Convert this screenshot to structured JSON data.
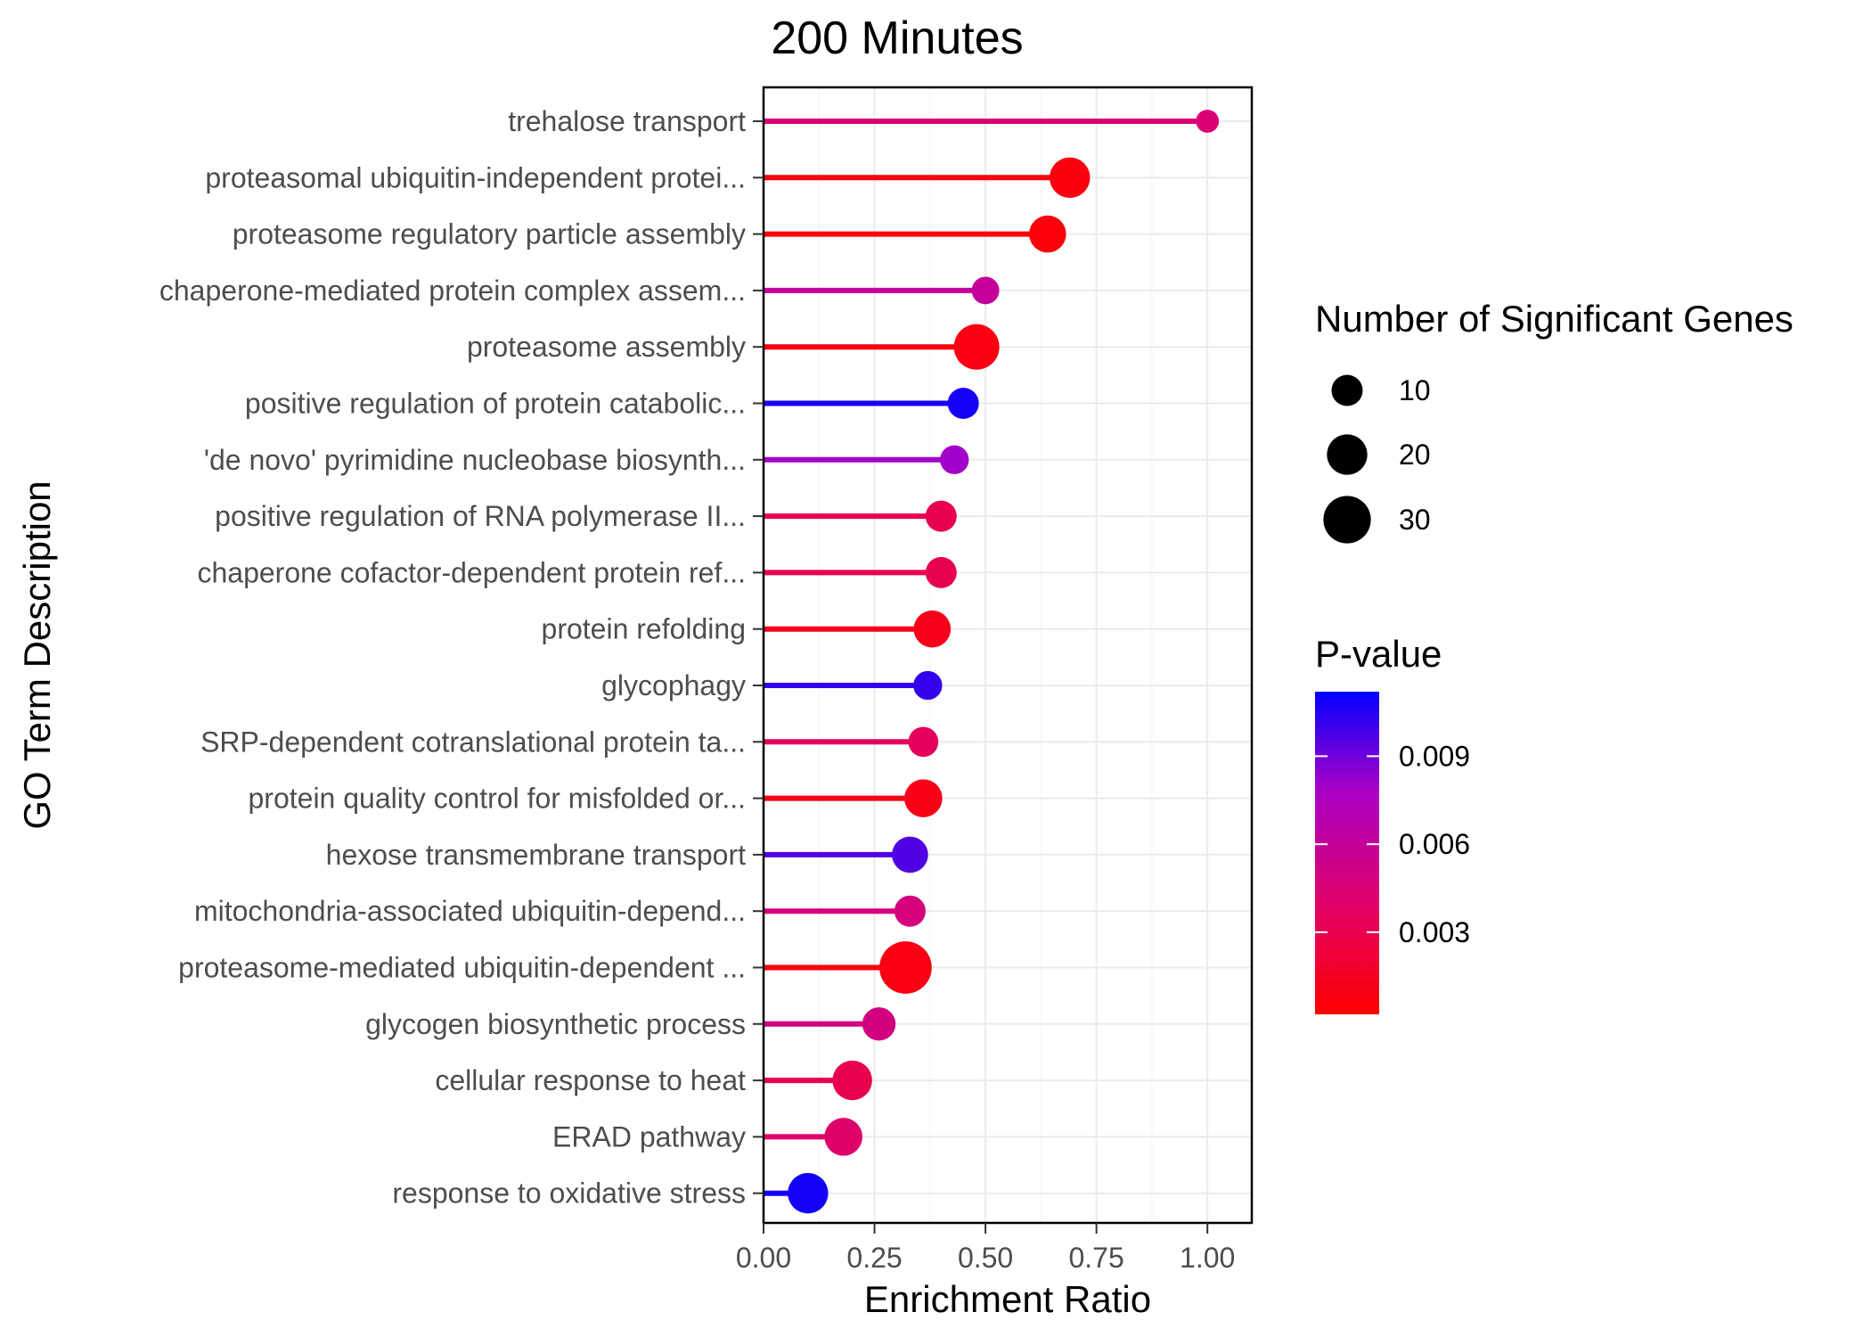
{
  "chart_data": {
    "type": "lollipop",
    "title": "200 Minutes",
    "xlabel": "Enrichment Ratio",
    "ylabel": "GO Term Description",
    "xlim": [
      0,
      1.1
    ],
    "xticks": [
      "0.00",
      "0.25",
      "0.50",
      "0.75",
      "1.00"
    ],
    "grid": true,
    "color_scale": {
      "low": "#ff0000",
      "high": "#0000ff",
      "domain": [
        0.0002,
        0.0112
      ]
    },
    "categories": [
      "trehalose transport",
      "proteasomal ubiquitin-independent protei...",
      "proteasome regulatory particle assembly",
      "chaperone-mediated protein complex assem...",
      "proteasome assembly",
      "positive regulation of protein catabolic...",
      "'de novo' pyrimidine nucleobase biosynth...",
      "positive regulation of RNA polymerase II...",
      "chaperone cofactor-dependent protein ref...",
      "protein refolding",
      "glycophagy",
      "SRP-dependent cotranslational protein ta...",
      "protein quality control for misfolded or...",
      "hexose transmembrane transport",
      "mitochondria-associated ubiquitin-depend...",
      "proteasome-mediated ubiquitin-dependent ...",
      "glycogen biosynthetic process",
      "cellular response to heat",
      "ERAD pathway",
      "response to oxidative stress"
    ],
    "enrichment_ratio": [
      1.0,
      0.69,
      0.64,
      0.5,
      0.48,
      0.45,
      0.43,
      0.4,
      0.4,
      0.38,
      0.37,
      0.36,
      0.36,
      0.33,
      0.33,
      0.32,
      0.26,
      0.2,
      0.18,
      0.1
    ],
    "significant_genes": [
      4,
      20,
      16,
      7,
      27,
      10,
      8,
      10,
      10,
      16,
      8,
      9,
      17,
      15,
      10,
      38,
      12,
      19,
      17,
      20
    ],
    "p_value": [
      0.0045,
      0.0007,
      0.0006,
      0.006,
      0.0008,
      0.0108,
      0.008,
      0.003,
      0.003,
      0.0012,
      0.0102,
      0.0035,
      0.001,
      0.0096,
      0.0048,
      0.0009,
      0.005,
      0.003,
      0.004,
      0.0108
    ],
    "legend_size": {
      "title": "Number of Significant Genes",
      "values": [
        10,
        20,
        30
      ],
      "labels": [
        "10",
        "20",
        "30"
      ]
    },
    "legend_color": {
      "title": "P-value",
      "ticks": [
        0.009,
        0.006,
        0.003
      ],
      "labels": [
        "0.009",
        "0.006",
        "0.003"
      ]
    },
    "legend_placement": "right"
  }
}
